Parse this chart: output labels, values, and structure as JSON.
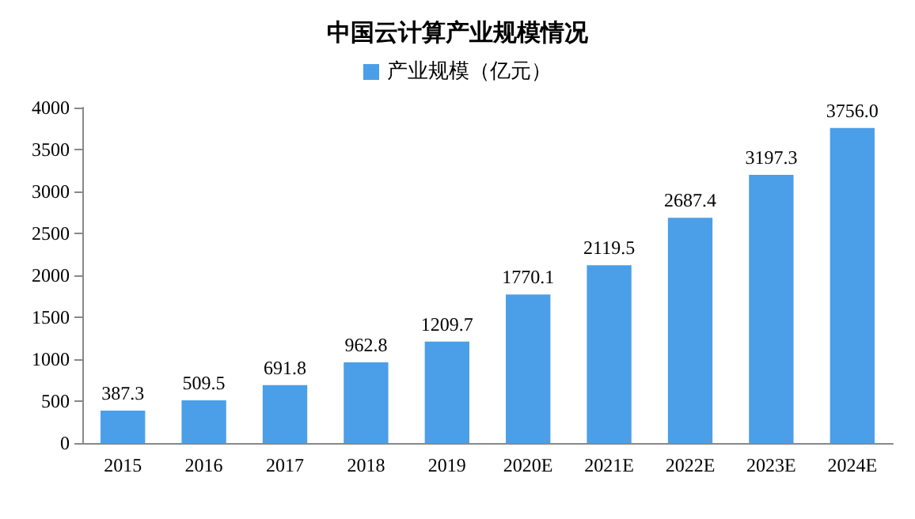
{
  "chart_data": {
    "type": "bar",
    "title": "中国云计算产业规模情况",
    "categories": [
      "2015",
      "2016",
      "2017",
      "2018",
      "2019",
      "2020E",
      "2021E",
      "2022E",
      "2023E",
      "2024E"
    ],
    "series": [
      {
        "name": "产业规模（亿元）",
        "color": "#4a9fe8",
        "values": [
          387.3,
          509.5,
          691.8,
          962.8,
          1209.7,
          1770.1,
          2119.5,
          2687.4,
          3197.3,
          3756.0
        ],
        "value_labels": [
          "387.3",
          "509.5",
          "691.8",
          "962.8",
          "1209.7",
          "1770.1",
          "2119.5",
          "2687.4",
          "3197.3",
          "3756.0"
        ]
      }
    ],
    "ylim": [
      0,
      4000
    ],
    "yticks": [
      0,
      500,
      1000,
      1500,
      2000,
      2500,
      3000,
      3500,
      4000
    ],
    "grid": false,
    "legend": "top"
  }
}
